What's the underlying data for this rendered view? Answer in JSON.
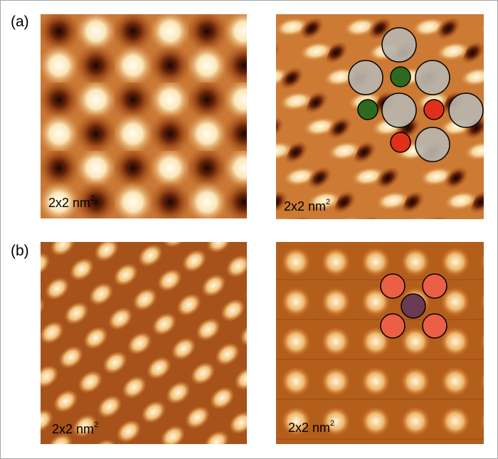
{
  "panels": {
    "a": {
      "label": "(a)",
      "left_image": {
        "scale_value": "2x2 nm",
        "scale_exp": "2"
      },
      "right_image": {
        "scale_value": "2x2 nm",
        "scale_exp": "2"
      }
    },
    "b": {
      "label": "(b)",
      "left_image": {
        "scale_value": "2x2 nm",
        "scale_exp": "2"
      },
      "right_image": {
        "scale_value": "2x2 nm",
        "scale_exp": "2"
      }
    }
  },
  "colors": {
    "stm_dark": "#5a1e0a",
    "stm_mid": "#c8641e",
    "stm_bright": "#fff3d8",
    "marker_gray": "#b8b4ac",
    "marker_green": "#2e6a1e",
    "marker_red": "#e0301a",
    "marker_salmon": "#f0604a",
    "marker_purple": "#6a3a52"
  }
}
